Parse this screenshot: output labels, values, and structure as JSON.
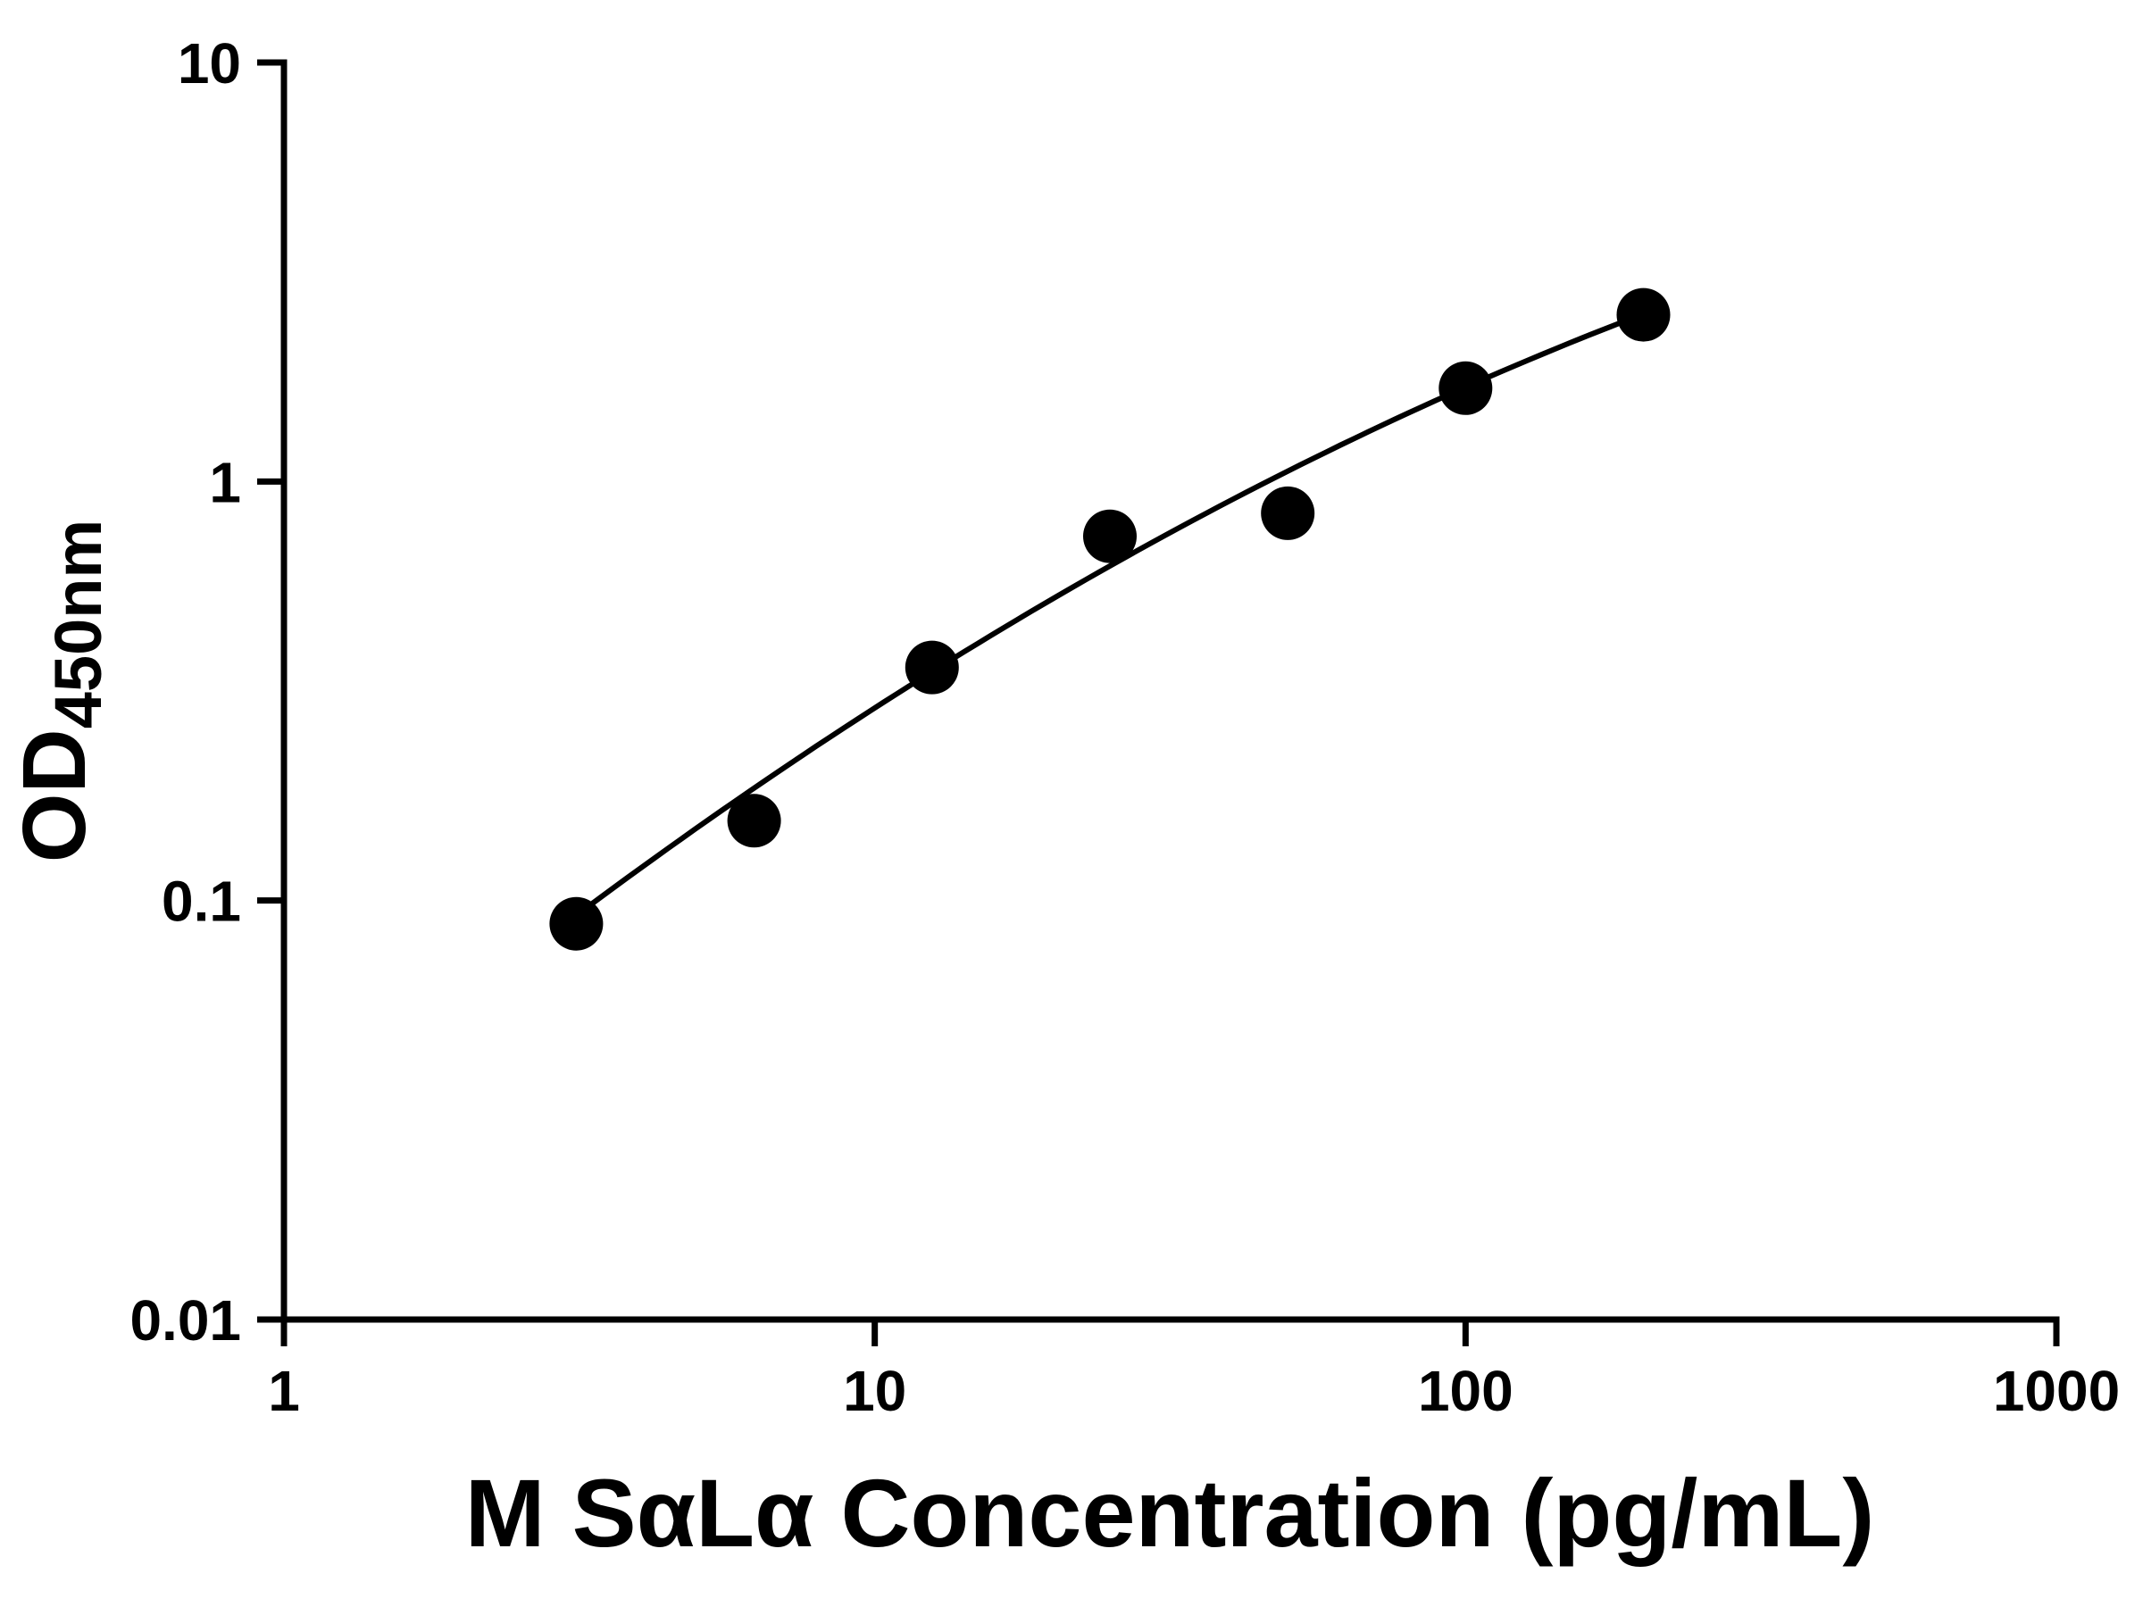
{
  "chart_data": {
    "type": "scatter",
    "title": "",
    "xlabel": "M SαLα Concentration (pg/mL)",
    "ylabel": "OD450nm",
    "ylabel_main": "OD",
    "ylabel_sub": "450nm",
    "x_scale": "log10",
    "y_scale": "log10",
    "xlim": [
      1,
      1000
    ],
    "ylim": [
      0.01,
      10
    ],
    "x_ticks": [
      1,
      10,
      100,
      1000
    ],
    "x_tick_labels": [
      "1",
      "10",
      "100",
      "1000"
    ],
    "y_ticks": [
      0.01,
      0.1,
      1,
      10
    ],
    "y_tick_labels": [
      "0.01",
      "0.1",
      "1",
      "10"
    ],
    "grid": false,
    "legend": false,
    "points": {
      "name": "standard-curve-points",
      "x": [
        3.125,
        6.25,
        12.5,
        25,
        50,
        100,
        200
      ],
      "y": [
        0.088,
        0.155,
        0.36,
        0.74,
        0.84,
        1.67,
        2.5
      ]
    },
    "fit_curve": {
      "model": "log10(y) = a*t^2 + b*t + c, t = log10(x)",
      "a": -0.14231,
      "b": 1.19259,
      "c": -1.59072,
      "x_start": 3.1,
      "x_end": 205
    },
    "marker_color": "#000000",
    "line_color": "#000000",
    "axis_color": "#000000",
    "background": "#ffffff"
  }
}
